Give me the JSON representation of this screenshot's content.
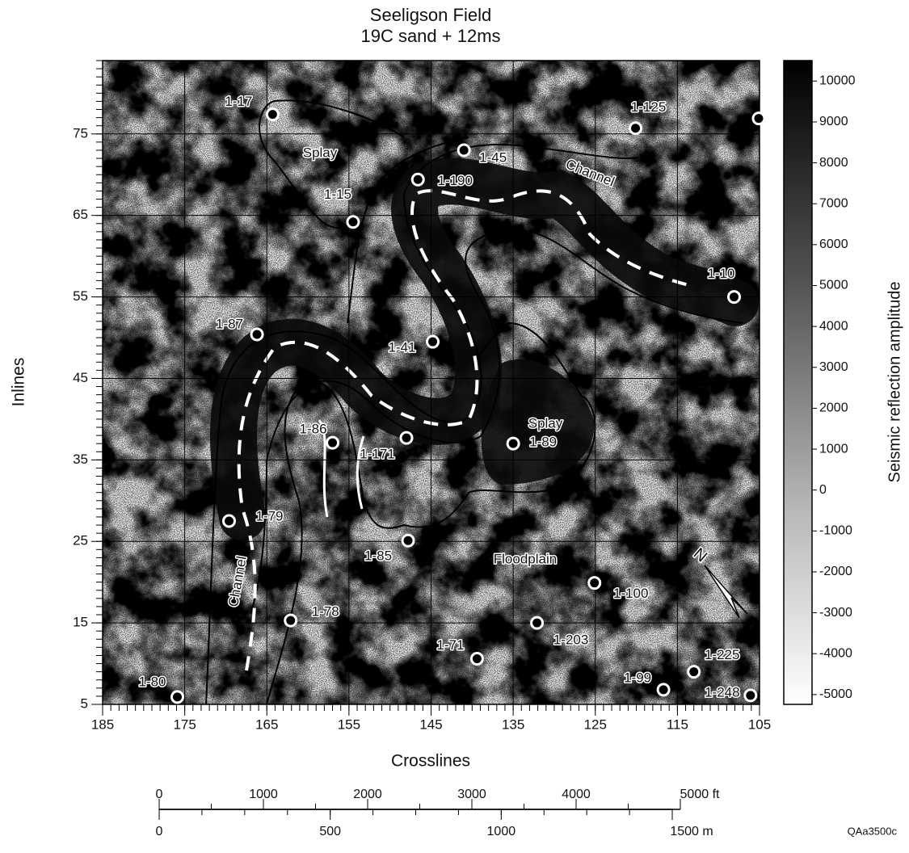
{
  "title": "Seeligson Field",
  "subtitle": "19C sand + 12ms",
  "map": {
    "xlabel": "Crosslines",
    "ylabel": "Inlines",
    "xlim": [
      185,
      105
    ],
    "ylim": [
      5,
      84
    ],
    "xticks": [
      185,
      175,
      165,
      155,
      145,
      135,
      125,
      115,
      105
    ],
    "yticks": [
      5,
      15,
      25,
      35,
      45,
      55,
      65,
      75
    ],
    "grid": true,
    "wells": [
      {
        "label": "1-17",
        "x": 164.3,
        "y": 77.4
      },
      {
        "label": "1-125",
        "x": 120.1,
        "y": 75.7
      },
      {
        "label": null,
        "x": 105.1,
        "y": 76.9
      },
      {
        "label": "1-45",
        "x": 141.0,
        "y": 73.0
      },
      {
        "label": "1-190",
        "x": 146.6,
        "y": 69.4
      },
      {
        "label": "1-15",
        "x": 154.5,
        "y": 64.2
      },
      {
        "label": "1-10",
        "x": 108.1,
        "y": 55.0
      },
      {
        "label": "1-87",
        "x": 166.2,
        "y": 50.4
      },
      {
        "label": "1-41",
        "x": 144.8,
        "y": 49.5
      },
      {
        "label": "1-86",
        "x": 157.0,
        "y": 37.1
      },
      {
        "label": "1-171",
        "x": 148.0,
        "y": 37.7
      },
      {
        "label": "1-89",
        "x": 135.0,
        "y": 37.0
      },
      {
        "label": "1-79",
        "x": 169.6,
        "y": 27.5
      },
      {
        "label": "1-85",
        "x": 147.8,
        "y": 25.1
      },
      {
        "label": "1-100",
        "x": 125.1,
        "y": 19.9
      },
      {
        "label": "1-78",
        "x": 162.1,
        "y": 15.3
      },
      {
        "label": "1-203",
        "x": 132.1,
        "y": 15.0
      },
      {
        "label": "1-71",
        "x": 139.4,
        "y": 10.6
      },
      {
        "label": "1-225",
        "x": 113.0,
        "y": 9.0
      },
      {
        "label": "1-99",
        "x": 116.7,
        "y": 6.8
      },
      {
        "label": "1-248",
        "x": 106.1,
        "y": 6.1
      },
      {
        "label": "1-80",
        "x": 175.9,
        "y": 5.9
      }
    ],
    "annotations": [
      "Splay",
      "Splay",
      "Channel",
      "Channel",
      "Floodplain"
    ],
    "north_arrow": "N"
  },
  "colorbar": {
    "label": "Seismic reflection amplitude",
    "lim": [
      -5240,
      10500
    ],
    "ticks": [
      -5000,
      -4000,
      -3000,
      -2000,
      -1000,
      0,
      1000,
      2000,
      3000,
      4000,
      5000,
      6000,
      7000,
      8000,
      9000,
      10000
    ]
  },
  "scale_bar": {
    "feet": {
      "xlim": [
        0,
        5000
      ],
      "ticks": [
        0,
        1000,
        2000,
        3000,
        4000,
        {
          "value": 5000,
          "label": "5000 ft"
        }
      ]
    },
    "meters": {
      "xlim": [
        0,
        1500
      ],
      "ticks": [
        0,
        500,
        1000,
        {
          "value": 1500,
          "label": "1500 m"
        }
      ]
    }
  },
  "figure_code": "QAa3500c"
}
